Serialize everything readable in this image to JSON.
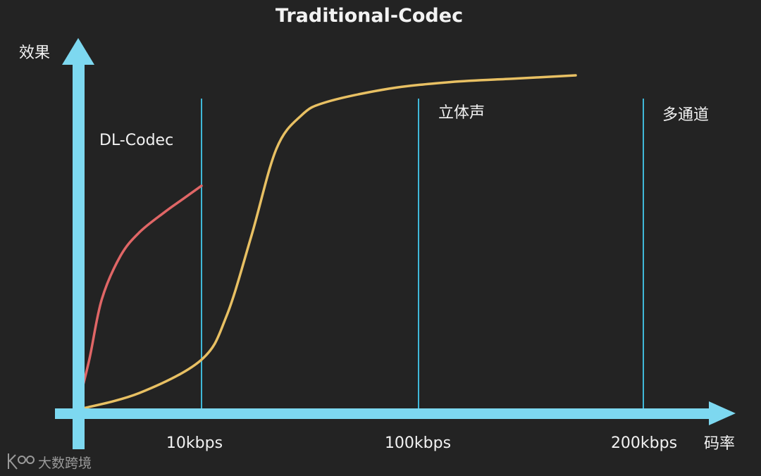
{
  "chart_data": {
    "type": "line",
    "title": "Traditional-Codec",
    "xlabel": "码率",
    "ylabel": "效果",
    "x_ticks": [
      "10kbps",
      "100kbps",
      "200kbps"
    ],
    "regions": [
      "DL-Codec",
      "立体声",
      "多通道"
    ],
    "series": [
      {
        "name": "DL-Codec",
        "color": "#e06666",
        "points": [
          [
            0.0,
            0.0
          ],
          [
            0.1,
            0.15
          ],
          [
            0.2,
            0.33
          ],
          [
            0.35,
            0.46
          ],
          [
            0.5,
            0.53
          ],
          [
            0.7,
            0.59
          ],
          [
            0.85,
            0.63
          ],
          [
            1.0,
            0.67
          ]
        ]
      },
      {
        "name": "Traditional-Codec",
        "color": "#e8c063",
        "points": [
          [
            0.0,
            0.0
          ],
          [
            0.5,
            0.05
          ],
          [
            1.0,
            0.15
          ],
          [
            1.2,
            0.28
          ],
          [
            1.4,
            0.52
          ],
          [
            1.6,
            0.78
          ],
          [
            1.8,
            0.88
          ],
          [
            2.0,
            0.92
          ],
          [
            2.5,
            0.96
          ],
          [
            3.0,
            0.98
          ],
          [
            3.5,
            0.99
          ],
          [
            4.0,
            1.0
          ]
        ]
      }
    ],
    "grid": false
  },
  "colors": {
    "background": "#232323",
    "axis": "#7dd8f0",
    "guide": "#3fb8d8",
    "text": "#f2f2f2"
  },
  "watermark": "大数跨境"
}
